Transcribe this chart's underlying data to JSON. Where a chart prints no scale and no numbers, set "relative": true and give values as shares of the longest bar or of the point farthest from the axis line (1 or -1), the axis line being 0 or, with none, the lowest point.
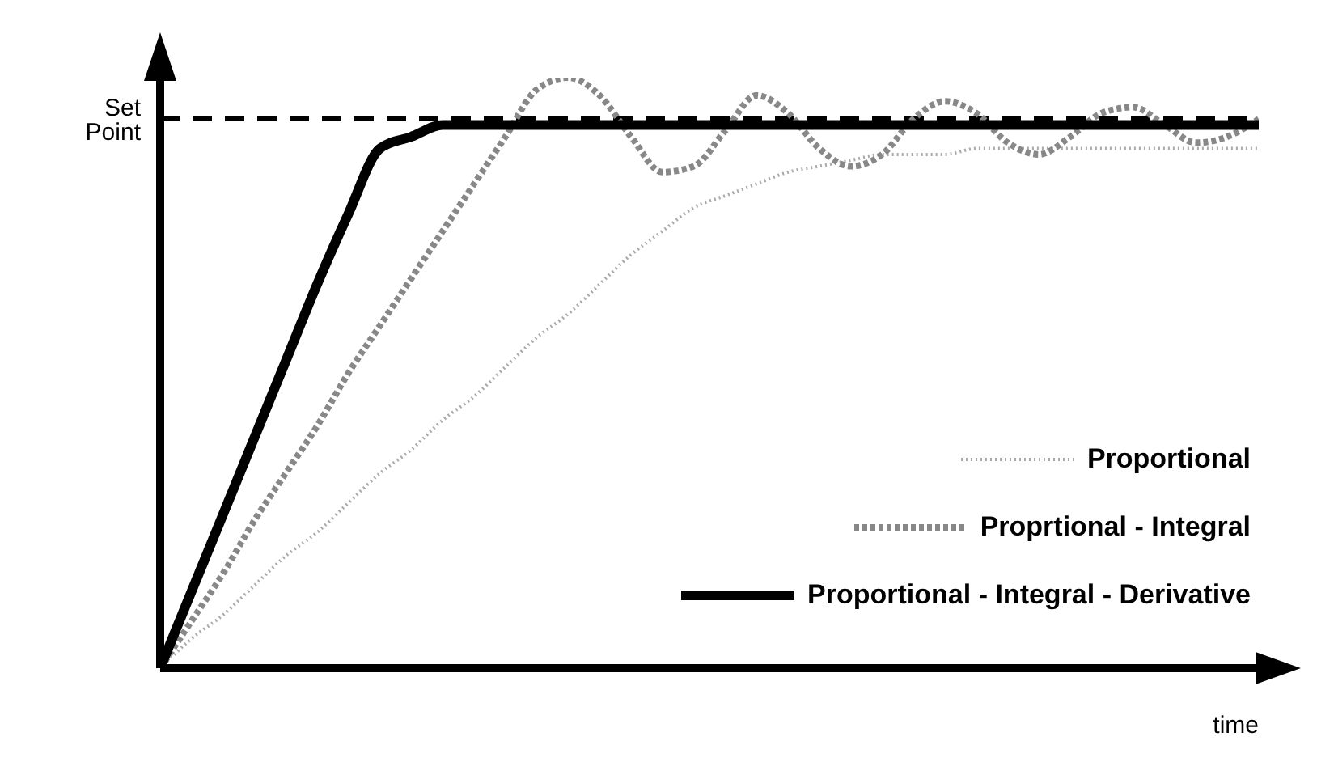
{
  "chart_data": {
    "type": "line",
    "relative": true,
    "xlabel": "time",
    "legend": "bottom right",
    "marker": "none",
    "categories": [
      null,
      null,
      null,
      null,
      null,
      null,
      null,
      null,
      null,
      null,
      null,
      null,
      null,
      null,
      null,
      null,
      null,
      null,
      null,
      null,
      null,
      null,
      null,
      null,
      null,
      null,
      null,
      null,
      null,
      null,
      null,
      null,
      null,
      null,
      null,
      null
    ],
    "ref_lines": [
      {
        "axis": "y",
        "value": 0.93,
        "label": "Set Point",
        "color": "#000000",
        "line_style": "dashed"
      }
    ],
    "series": [
      {
        "name": "Proportional",
        "color": "#aaaaaa",
        "line_style": "dotted",
        "values": [
          0,
          0.05,
          0.09,
          0.14,
          0.19,
          0.23,
          0.28,
          0.33,
          0.37,
          0.42,
          0.46,
          0.51,
          0.56,
          0.6,
          0.65,
          0.7,
          0.74,
          0.78,
          0.8,
          0.82,
          0.84,
          0.85,
          0.86,
          0.87,
          0.87,
          0.87,
          0.88,
          0.88,
          0.88,
          0.88,
          0.88,
          0.88,
          0.88,
          0.88,
          0.88,
          0.88
        ]
      },
      {
        "name": "Proprtional - Integral",
        "color": "#888888",
        "line_style": "dashed",
        "values": [
          0,
          0.08,
          0.16,
          0.25,
          0.33,
          0.41,
          0.5,
          0.58,
          0.66,
          0.74,
          0.82,
          0.9,
          0.98,
          1,
          0.97,
          0.9,
          0.84,
          0.85,
          0.91,
          0.97,
          0.94,
          0.88,
          0.85,
          0.87,
          0.93,
          0.96,
          0.94,
          0.89,
          0.87,
          0.9,
          0.94,
          0.95,
          0.92,
          0.89,
          0.9,
          0.93
        ]
      },
      {
        "name": "Proportional - Integral - Derivative",
        "color": "#000000",
        "line_style": "solid",
        "values": [
          0,
          0.13,
          0.26,
          0.39,
          0.52,
          0.65,
          0.77,
          0.88,
          0.9,
          0.92,
          0.92,
          0.92,
          0.92,
          0.92,
          0.92,
          0.92,
          0.92,
          0.92,
          0.92,
          0.92,
          0.92,
          0.92,
          0.92,
          0.92,
          0.92,
          0.92,
          0.92,
          0.92,
          0.92,
          0.92,
          0.92,
          0.92,
          0.92,
          0.92,
          0.92,
          0.92
        ]
      }
    ]
  }
}
